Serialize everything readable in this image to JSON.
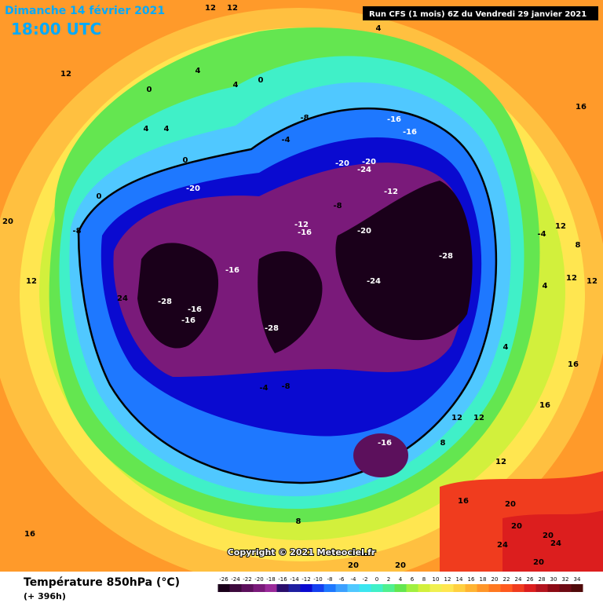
{
  "header": {
    "title": "Dimanche 14 février 2021",
    "time": "18:00 UTC",
    "run": "Run CFS (1 mois) 6Z du Vendredi 29 janvier 2021"
  },
  "copyright": "Copyright © 2021 Meteociel.fr",
  "footer": {
    "parameter": "Température 850hPa (°C)",
    "lead_time": "(+ 396h)"
  },
  "colorbar": {
    "ticks": [
      -26,
      -24,
      -22,
      -20,
      -18,
      -16,
      -14,
      -12,
      -10,
      -8,
      -6,
      -4,
      -2,
      0,
      2,
      4,
      6,
      8,
      10,
      12,
      14,
      16,
      18,
      20,
      22,
      24,
      26,
      28,
      30,
      32,
      34
    ],
    "colors": [
      "#1a001a",
      "#3d0a3d",
      "#5c105c",
      "#7a1a7a",
      "#9a2a9a",
      "#2a0d6b",
      "#1f1fa0",
      "#0a0ad0",
      "#1440f0",
      "#1e78ff",
      "#3ca0ff",
      "#50c8ff",
      "#3ce6f0",
      "#40f0c8",
      "#50f090",
      "#64e650",
      "#a0f040",
      "#d2f03c",
      "#f0f050",
      "#ffe650",
      "#ffd040",
      "#ffb432",
      "#ff9628",
      "#ff7820",
      "#ff5a1e",
      "#f03c1e",
      "#dc1e1e",
      "#b4141e",
      "#8c0a14",
      "#6e0a14",
      "#500a0a"
    ]
  },
  "contour_labels": [
    12,
    12,
    12,
    4,
    4,
    0,
    0,
    4,
    4,
    0,
    0,
    20,
    -8,
    12,
    24,
    -28,
    -16,
    -16,
    -8,
    -4,
    -16,
    -16,
    -20,
    -20,
    -24,
    -12,
    -20,
    -8,
    -12,
    -16,
    -20,
    -28,
    -16,
    -24,
    -28,
    -4,
    -8,
    -16,
    4,
    16,
    12,
    -4,
    8,
    12,
    12,
    4,
    4,
    16,
    16,
    12,
    12,
    8,
    12,
    16,
    20,
    20,
    20,
    24,
    24,
    20,
    16,
    8,
    20,
    20
  ]
}
